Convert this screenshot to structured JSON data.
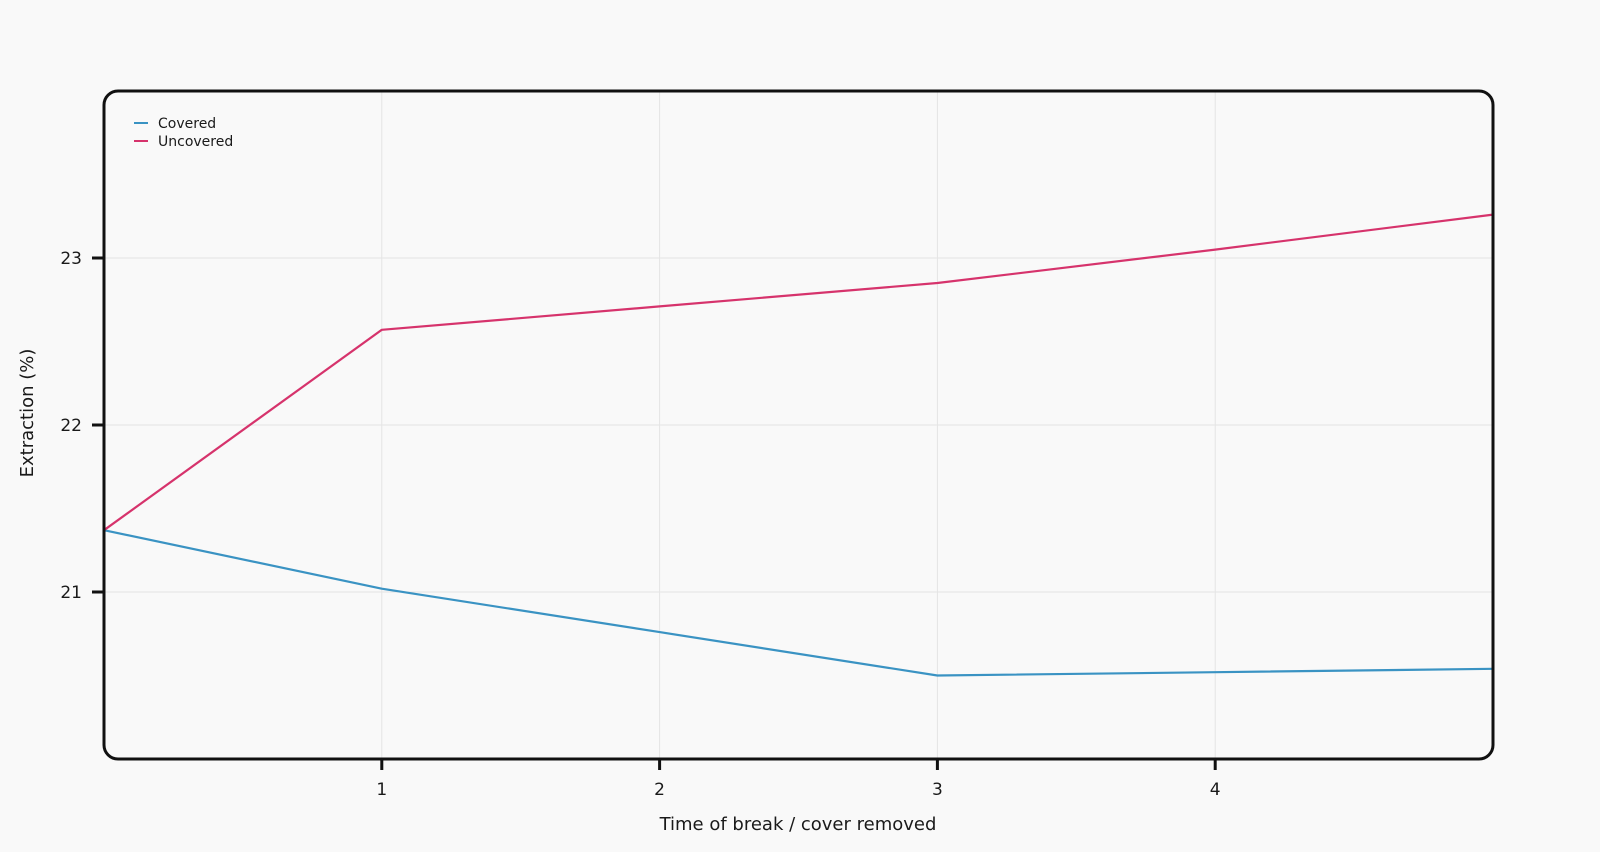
{
  "chart_data": {
    "type": "line",
    "title": "",
    "xlabel": "Time of break / cover removed",
    "ylabel": "Extraction (%)",
    "x": [
      0,
      1,
      2,
      3,
      4,
      5
    ],
    "xticks": [
      "1",
      "2",
      "3",
      "4"
    ],
    "yticks": [
      "21",
      "22",
      "23"
    ],
    "xlim": [
      0,
      5
    ],
    "ylim": [
      20,
      24
    ],
    "grid": true,
    "legend_position": "top-left",
    "series": [
      {
        "name": "Covered",
        "color": "#3a93c3",
        "values": [
          21.37,
          21.02,
          20.76,
          20.5,
          20.52,
          20.54
        ]
      },
      {
        "name": "Uncovered",
        "color": "#d6336c",
        "values": [
          21.37,
          22.57,
          22.71,
          22.85,
          23.05,
          23.26
        ]
      }
    ]
  }
}
